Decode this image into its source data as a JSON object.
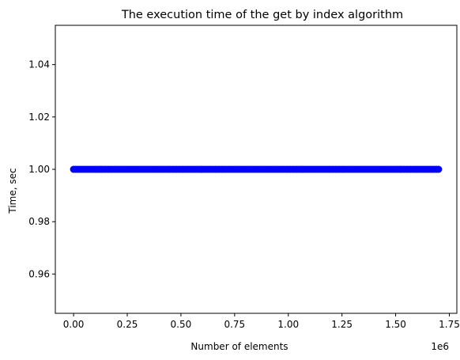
{
  "chart_data": {
    "type": "scatter",
    "title": "The execution time of the get by index algorithm",
    "xlabel": "Number of elements",
    "ylabel": "Time, sec",
    "x_offset_text": "1e6",
    "x_range": [
      0,
      1.7
    ],
    "y_value": 1.0,
    "point_spacing": 0.01,
    "xlim": [
      -0.085,
      1.785
    ],
    "ylim": [
      0.945,
      1.055
    ],
    "xticks": [
      0.0,
      0.25,
      0.5,
      0.75,
      1.0,
      1.25,
      1.5,
      1.75
    ],
    "xtick_labels": [
      "0.00",
      "0.25",
      "0.50",
      "0.75",
      "1.00",
      "1.25",
      "1.50",
      "1.75"
    ],
    "yticks": [
      0.96,
      0.98,
      1.0,
      1.02,
      1.04
    ],
    "ytick_labels": [
      "0.96",
      "0.98",
      "1.00",
      "1.02",
      "1.04"
    ],
    "color": "#0000ff",
    "grid": false
  }
}
